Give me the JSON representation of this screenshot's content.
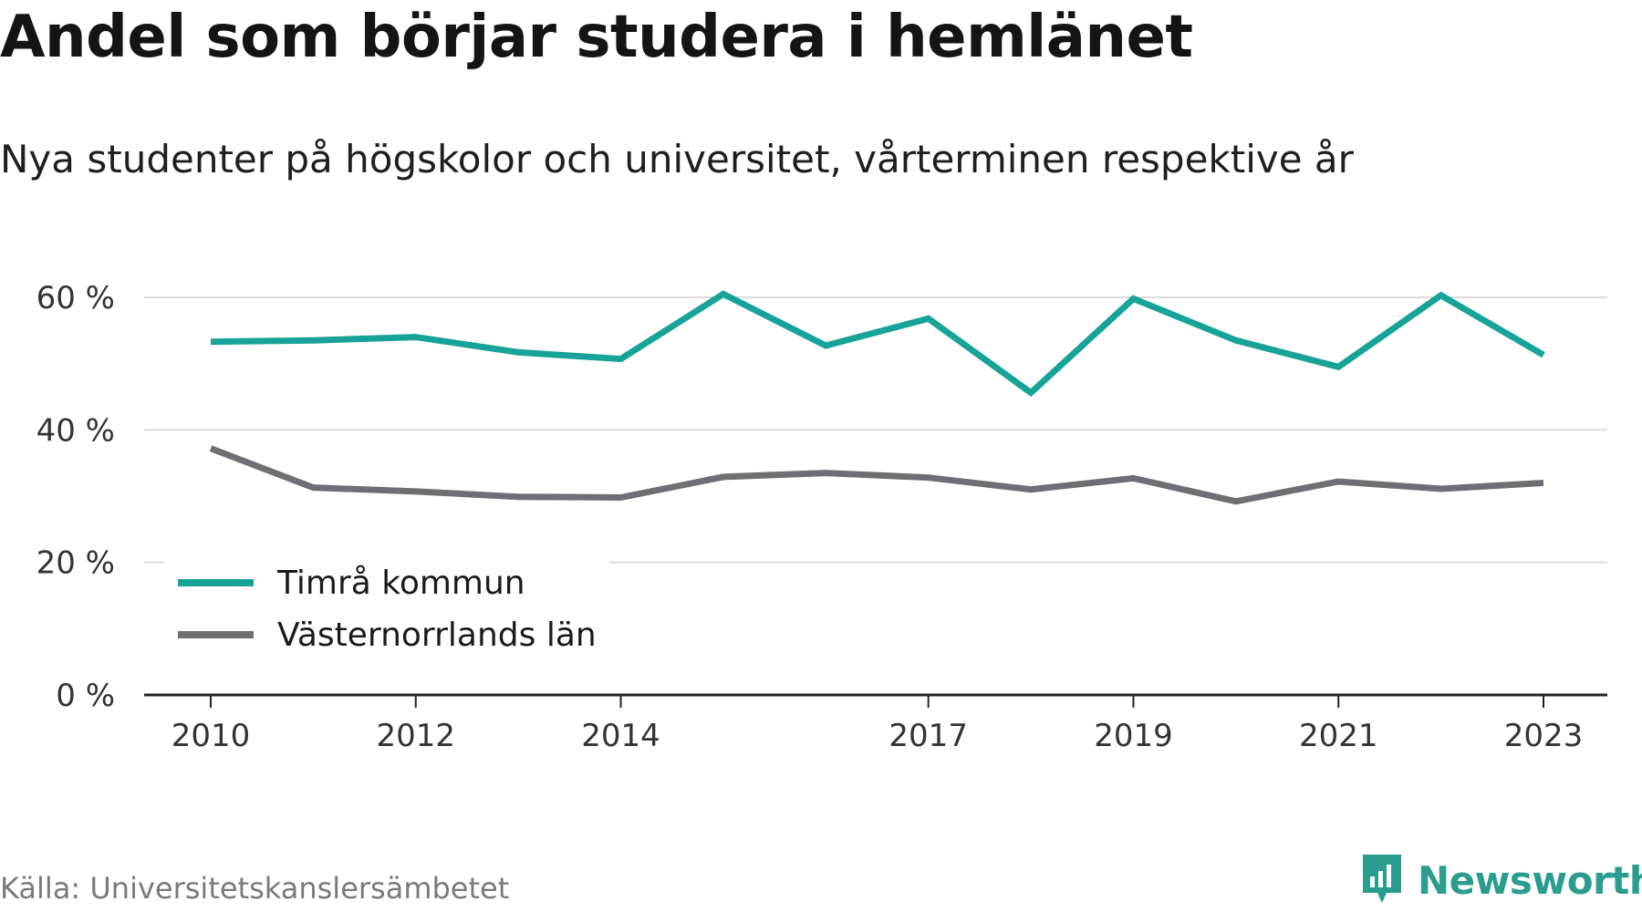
{
  "title": "Andel som börjar studera i hemlänet",
  "subtitle": "Nya studenter på högskolor och universitet, vårterminen respektive år",
  "source": "Källa: Universitetskanslersämbetet",
  "brand": "Newsworthy",
  "colors": {
    "series_1": "#17a398",
    "series_2": "#6e6e75",
    "brand": "#2a9d8f"
  },
  "chart_data": {
    "type": "line",
    "x": [
      2010,
      2011,
      2012,
      2013,
      2014,
      2015,
      2016,
      2017,
      2018,
      2019,
      2020,
      2021,
      2022,
      2023
    ],
    "x_tick_labels": [
      "2010",
      "2012",
      "2014",
      "2017",
      "2019",
      "2021",
      "2023"
    ],
    "y_tick_labels": [
      "0 %",
      "20 %",
      "40 %",
      "60 %"
    ],
    "y_ticks": [
      0,
      20,
      40,
      60
    ],
    "ylim": [
      0,
      60
    ],
    "grid": true,
    "legend_position": "bottom-left",
    "series": [
      {
        "name": "Timrå kommun",
        "values": [
          53.3,
          53.5,
          54.0,
          51.7,
          50.7,
          60.5,
          52.7,
          56.8,
          45.6,
          59.8,
          53.5,
          49.5,
          60.3,
          51.3
        ]
      },
      {
        "name": "Västernorrlands län",
        "values": [
          37.2,
          31.3,
          30.7,
          29.9,
          29.8,
          32.9,
          33.5,
          32.8,
          31.0,
          32.7,
          29.2,
          32.2,
          31.1,
          32.0
        ]
      }
    ]
  }
}
